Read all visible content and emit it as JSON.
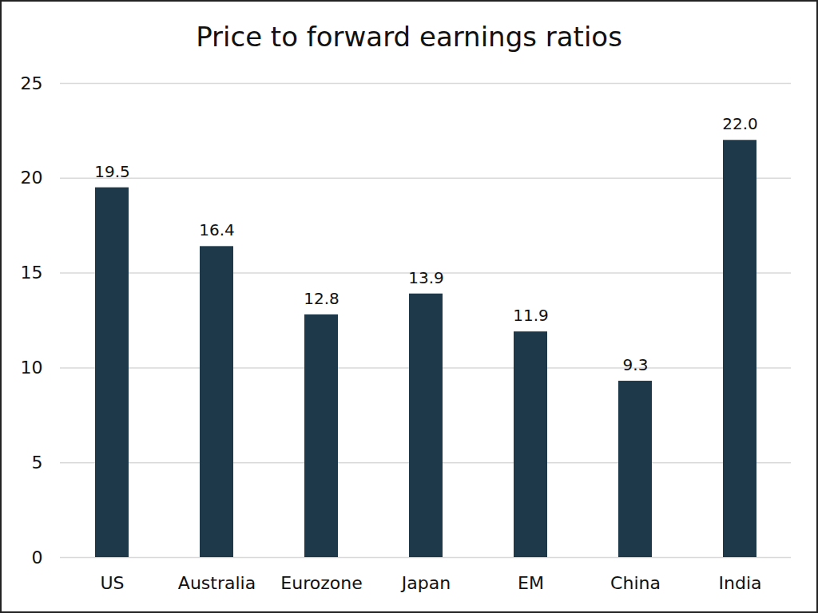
{
  "chart_data": {
    "type": "bar",
    "title": "Price to forward earnings ratios",
    "categories": [
      "US",
      "Australia",
      "Eurozone",
      "Japan",
      "EM",
      "China",
      "India"
    ],
    "values": [
      19.5,
      16.4,
      12.8,
      13.9,
      11.9,
      9.3,
      22.0
    ],
    "value_labels": [
      "19.5",
      "16.4",
      "12.8",
      "13.9",
      "11.9",
      "9.3",
      "22.0"
    ],
    "color": "#1e3a4a",
    "ylim": [
      0,
      25
    ],
    "yticks": [
      0,
      5,
      10,
      15,
      20,
      25
    ],
    "grid": true,
    "data_labels": true
  }
}
